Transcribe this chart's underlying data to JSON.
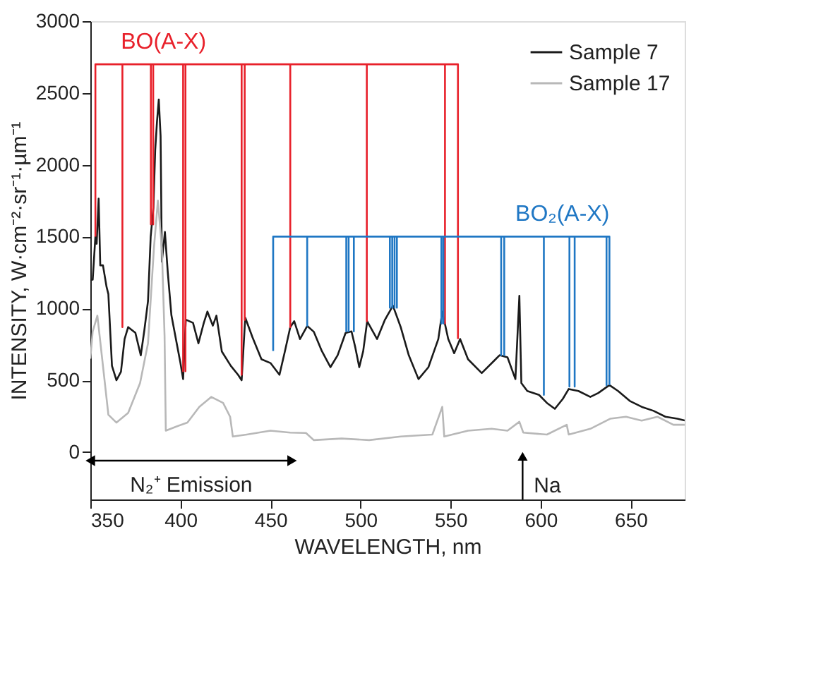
{
  "chart_data": {
    "type": "line",
    "xlabel": "WAVELENGTH, nm",
    "ylabel": "INTENSITY, W·cm⁻²·sr⁻¹·µm⁻¹",
    "xlim": [
      350,
      680
    ],
    "xticks": [
      350,
      400,
      450,
      500,
      550,
      600,
      650
    ],
    "ylim": [
      -330,
      3000
    ],
    "yticks": [
      0,
      500,
      {
        "value": 1000,
        "label": "1000"
      },
      {
        "value": 1500,
        "label": "1500"
      },
      {
        "value": 2000,
        "label": "2000"
      },
      {
        "value": 2500,
        "label": "2500"
      },
      {
        "value": 3000,
        "label": "3000"
      }
    ],
    "grid": false,
    "legend": "top right",
    "series": [
      {
        "name": "Sample 7",
        "color": "#1a1a1a",
        "x": [
          350,
          351.3,
          352.8,
          353.5,
          354.6,
          355.5,
          357,
          359,
          360,
          362,
          364.5,
          367,
          369,
          371,
          375,
          378,
          380,
          382,
          383.5,
          385,
          386,
          387,
          388,
          389,
          389.7,
          391.4,
          393,
          395,
          400,
          401.5,
          403,
          407,
          410,
          413,
          415,
          418,
          420,
          423,
          428,
          432,
          434,
          436,
          440,
          445,
          450,
          455,
          458,
          461,
          463.2,
          466.4,
          470.4,
          474.1,
          478.5,
          483.3,
          487.3,
          491.7,
          495,
          497.1,
          499.3,
          501.5,
          503.7,
          509.2,
          513.6,
          518,
          522.4,
          526.8,
          532.2,
          537.7,
          543.2,
          545.4,
          548.7,
          552,
          555.3,
          559.7,
          567.3,
          575,
          577.2,
          581.6,
          586,
          588.2,
          589.3,
          592.6,
          599.1,
          603.5,
          607.9,
          612.3,
          615.6,
          621,
          627.6,
          632,
          638.2,
          643,
          649.5,
          656.1,
          662.7,
          669.3,
          675.9,
          680
        ],
        "values": [
          1200,
          1200,
          1500,
          1450,
          1765,
          1300,
          1300,
          1150,
          1100,
          600,
          500,
          560,
          787,
          870,
          830,
          673,
          850,
          1050,
          1500,
          1700,
          2100,
          2300,
          2455,
          2200,
          1325,
          1533,
          1250,
          953,
          621,
          508,
          922,
          900,
          757,
          900,
          978,
          880,
          950,
          700,
          600,
          538,
          500,
          936,
          800,
          646,
          620,
          538,
          700,
          870,
          911,
          787,
          878,
          837,
          704,
          591,
          674,
          829,
          840,
          729,
          591,
          703,
          911,
          787,
          922,
          1019,
          867,
          674,
          508,
          591,
          787,
          978,
          787,
          688,
          787,
          646,
          550,
          646,
          674,
          660,
          508,
          1088,
          480,
          425,
          398,
          342,
          301,
          370,
          439,
          425,
          384,
          411,
          466,
          425,
          356,
          315,
          287,
          246,
          232,
          220
        ]
      },
      {
        "name": "Sample 17",
        "color": "#b8b8b8",
        "x": [
          350,
          351.3,
          353.9,
          357,
          360,
          364.5,
          371,
          377.6,
          382,
          385.3,
          387.5,
          389.7,
          391.2,
          391.9,
          397.4,
          403.9,
          410.5,
          417.1,
          423.7,
          427.6,
          429.1,
          436.8,
          450,
          461,
          469.7,
          474.1,
          489.5,
          504.8,
          522.4,
          539.9,
          545.4,
          546.5,
          559.7,
          572.8,
          581.6,
          588.2,
          590.4,
          603.5,
          614.5,
          615.6,
          627.6,
          638.6,
          647.4,
          656.1,
          664.9,
          673.7,
          680
        ],
        "values": [
          650,
          839,
          950,
          600,
          260,
          205,
          273,
          480,
          757,
          1420,
          1751,
          1420,
          812,
          149,
          176,
          205,
          315,
          384,
          342,
          246,
          108,
          122,
          149,
          135,
          133,
          83,
          94,
          83,
          108,
          122,
          315,
          108,
          149,
          162,
          149,
          211,
          135,
          122,
          190,
          122,
          162,
          232,
          246,
          219,
          246,
          190,
          190
        ]
      },
      {
        "name": "BO(A-X)",
        "color": "#e8202a",
        "x": [
          352.8,
          352.8,
          367.8,
          367.8,
          367.8,
          383.6,
          383.6,
          383.6,
          384.9,
          384.9,
          384.9,
          401.5,
          401.5,
          401.5,
          402.8,
          402.8,
          402.8,
          434,
          434,
          434,
          435.7,
          435.7,
          435.7,
          461,
          461,
          461,
          503.5,
          503.5,
          503.5,
          546.9,
          546.9,
          546.9,
          554.1,
          554.1
        ],
        "values": [
          1500,
          2700,
          2700,
          870,
          2700,
          2700,
          1585,
          2700,
          2700,
          1585,
          2700,
          2700,
          563,
          2700,
          2700,
          563,
          2700,
          2700,
          538,
          2700,
          2700,
          920,
          2700,
          2700,
          870,
          2700,
          2700,
          911,
          2700,
          2700,
          895,
          2700,
          2700,
          787
        ]
      },
      {
        "name": "BO₂(A-X)",
        "color": "#1f77c4",
        "x": [
          451.5,
          451.5,
          470.4,
          470.4,
          470.4,
          492.1,
          492.1,
          492.1,
          493.4,
          493.4,
          493.4,
          496.3,
          496.3,
          496.3,
          516.3,
          516.3,
          516.3,
          517.6,
          517.6,
          517.6,
          518.9,
          518.9,
          518.9,
          520.2,
          520.2,
          520.2,
          544.9,
          544.9,
          544.9,
          546,
          546,
          546,
          578.1,
          578.1,
          578.1,
          579.8,
          579.8,
          579.8,
          601.8,
          601.8,
          601.8,
          616,
          616,
          616,
          618.9,
          618.9,
          618.9,
          636.6,
          636.6,
          636.6,
          638.2,
          638.2
        ],
        "values": [
          704,
          1500,
          1500,
          880,
          1500,
          1500,
          840,
          1500,
          1500,
          840,
          1500,
          1500,
          840,
          1500,
          1500,
          1005,
          1500,
          1500,
          1005,
          1500,
          1500,
          1005,
          1500,
          1500,
          1005,
          1500,
          1500,
          895,
          1500,
          1500,
          895,
          1500,
          1500,
          674,
          1500,
          1500,
          674,
          1500,
          1500,
          398,
          1500,
          1500,
          456,
          1500,
          1500,
          456,
          1500,
          1500,
          466,
          1500,
          1500,
          466
        ]
      }
    ],
    "annotations": [
      {
        "text": "N₂⁺ Emission",
        "x": 462,
        "y": -60
      },
      {
        "text": "Na",
        "x": 590,
        "y": -30
      }
    ]
  }
}
